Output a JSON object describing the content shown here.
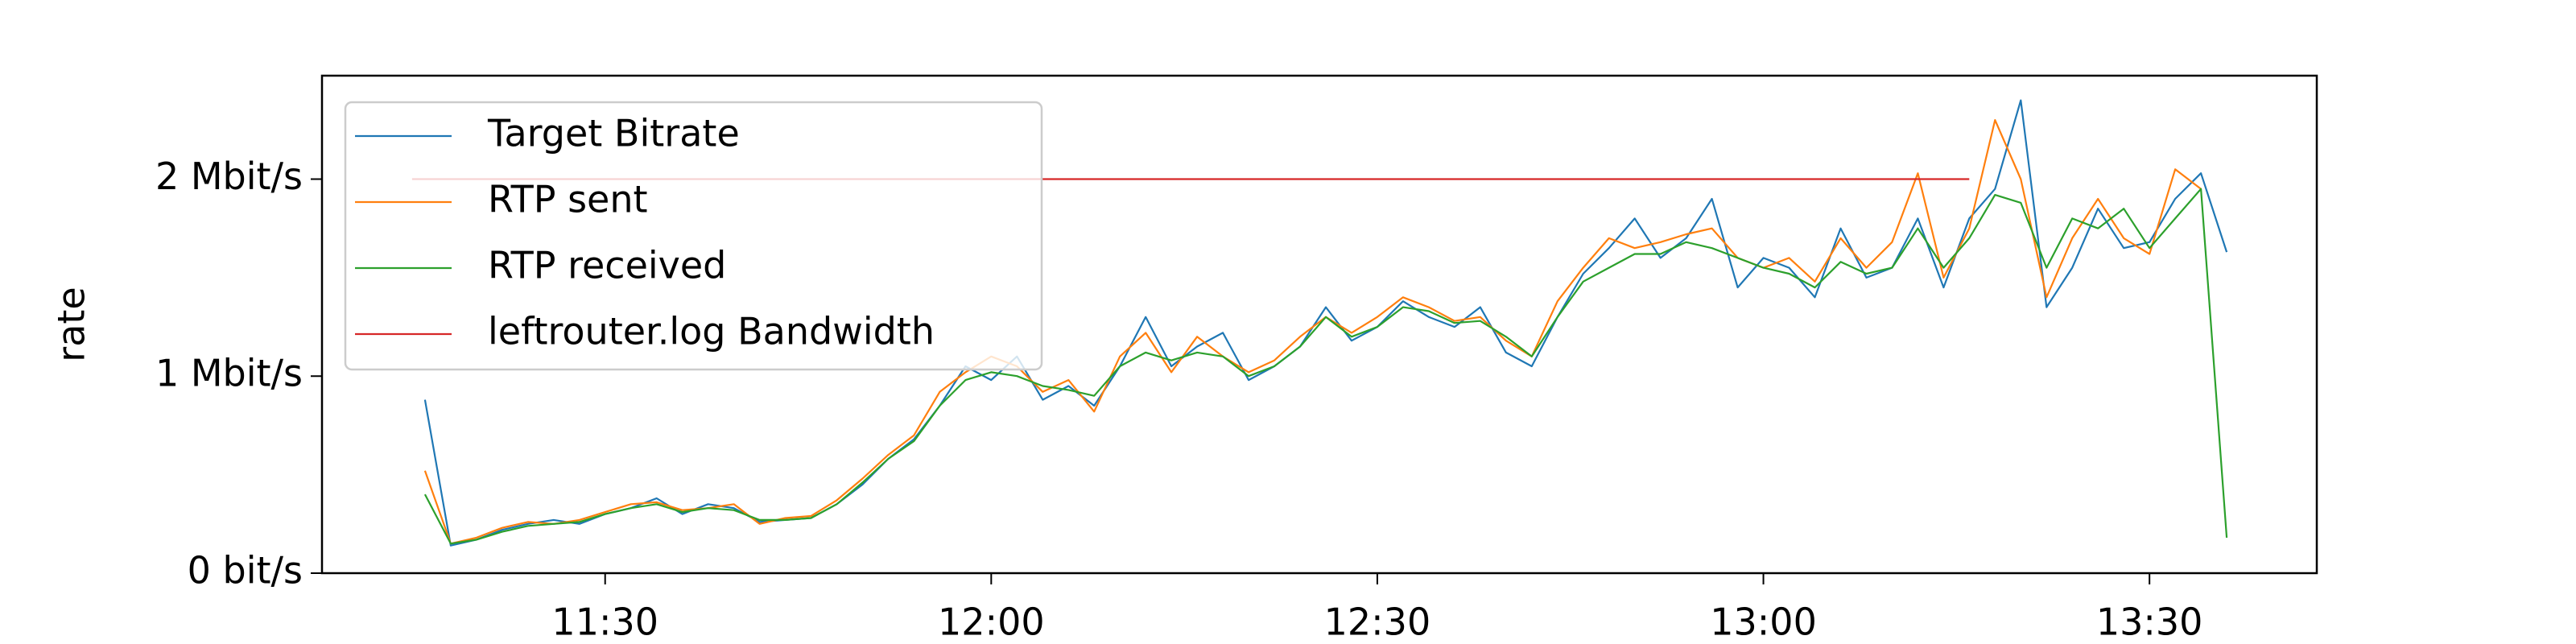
{
  "chart_data": {
    "type": "line",
    "y_label": "rate",
    "x": [
      "11:16",
      "11:18",
      "11:20",
      "11:22",
      "11:24",
      "11:26",
      "11:28",
      "11:30",
      "11:32",
      "11:34",
      "11:36",
      "11:38",
      "11:40",
      "11:42",
      "11:44",
      "11:46",
      "11:48",
      "11:50",
      "11:52",
      "11:54",
      "11:56",
      "11:58",
      "12:00",
      "12:02",
      "12:04",
      "12:06",
      "12:08",
      "12:10",
      "12:12",
      "12:14",
      "12:16",
      "12:18",
      "12:20",
      "12:22",
      "12:24",
      "12:26",
      "12:28",
      "12:30",
      "12:32",
      "12:34",
      "12:36",
      "12:38",
      "12:40",
      "12:42",
      "12:44",
      "12:46",
      "12:48",
      "12:50",
      "12:52",
      "12:54",
      "12:56",
      "12:58",
      "13:00",
      "13:02",
      "13:04",
      "13:06",
      "13:08",
      "13:10",
      "13:12",
      "13:14",
      "13:16",
      "13:18",
      "13:20",
      "13:22",
      "13:24",
      "13:26",
      "13:28",
      "13:30",
      "13:32",
      "13:34",
      "13:36"
    ],
    "series": [
      {
        "name": "Target Bitrate",
        "color": "#1f77b4",
        "values": [
          0.88,
          0.14,
          0.17,
          0.22,
          0.25,
          0.27,
          0.25,
          0.3,
          0.33,
          0.38,
          0.3,
          0.35,
          0.33,
          0.26,
          0.27,
          0.28,
          0.35,
          0.45,
          0.58,
          0.68,
          0.85,
          1.05,
          0.98,
          1.1,
          0.88,
          0.95,
          0.85,
          1.05,
          1.3,
          1.05,
          1.15,
          1.22,
          0.98,
          1.05,
          1.15,
          1.35,
          1.18,
          1.25,
          1.38,
          1.3,
          1.25,
          1.35,
          1.12,
          1.05,
          1.3,
          1.52,
          1.65,
          1.8,
          1.6,
          1.7,
          1.9,
          1.45,
          1.6,
          1.55,
          1.4,
          1.75,
          1.5,
          1.55,
          1.8,
          1.45,
          1.8,
          1.95,
          2.4,
          1.35,
          1.55,
          1.85,
          1.65,
          1.68,
          1.9,
          2.03,
          1.63
        ]
      },
      {
        "name": "RTP sent",
        "color": "#ff7f0e",
        "values": [
          0.52,
          0.15,
          0.18,
          0.23,
          0.26,
          0.25,
          0.27,
          0.31,
          0.35,
          0.36,
          0.32,
          0.33,
          0.35,
          0.25,
          0.28,
          0.29,
          0.37,
          0.48,
          0.6,
          0.7,
          0.92,
          1.02,
          1.1,
          1.05,
          0.92,
          0.98,
          0.82,
          1.1,
          1.22,
          1.02,
          1.2,
          1.1,
          1.02,
          1.08,
          1.2,
          1.3,
          1.22,
          1.3,
          1.4,
          1.35,
          1.28,
          1.3,
          1.18,
          1.1,
          1.38,
          1.55,
          1.7,
          1.65,
          1.68,
          1.72,
          1.75,
          1.6,
          1.55,
          1.6,
          1.48,
          1.7,
          1.55,
          1.68,
          2.03,
          1.5,
          1.75,
          2.3,
          2.0,
          1.4,
          1.7,
          1.9,
          1.7,
          1.62,
          2.05,
          1.95,
          null
        ]
      },
      {
        "name": "RTP received",
        "color": "#2ca02c",
        "values": [
          0.4,
          0.15,
          0.17,
          0.21,
          0.24,
          0.25,
          0.26,
          0.3,
          0.33,
          0.35,
          0.31,
          0.33,
          0.32,
          0.27,
          0.27,
          0.28,
          0.35,
          0.46,
          0.58,
          0.67,
          0.85,
          0.98,
          1.02,
          1.0,
          0.95,
          0.93,
          0.9,
          1.05,
          1.12,
          1.08,
          1.12,
          1.1,
          1.0,
          1.05,
          1.15,
          1.3,
          1.2,
          1.25,
          1.35,
          1.33,
          1.27,
          1.28,
          1.2,
          1.1,
          1.3,
          1.48,
          1.55,
          1.62,
          1.62,
          1.68,
          1.65,
          1.6,
          1.55,
          1.52,
          1.45,
          1.58,
          1.52,
          1.55,
          1.75,
          1.55,
          1.7,
          1.92,
          1.88,
          1.55,
          1.8,
          1.75,
          1.85,
          1.65,
          1.8,
          1.95,
          0.18
        ]
      },
      {
        "name": "leftrouter.log Bandwidth",
        "color": "#d62728",
        "x": [
          "11:15",
          "13:16"
        ],
        "values": [
          2.0,
          2.0
        ]
      }
    ],
    "xlim": [
      "11:08",
      "13:43"
    ],
    "xticks": [
      "11:30",
      "12:00",
      "12:30",
      "13:00",
      "13:30"
    ],
    "ylim": [
      0,
      2.525
    ],
    "yticks": [
      {
        "value": 0,
        "label": "0 bit/s"
      },
      {
        "value": 1,
        "label": "1 Mbit/s"
      },
      {
        "value": 2,
        "label": "2 Mbit/s"
      }
    ],
    "legend": "upper left"
  }
}
